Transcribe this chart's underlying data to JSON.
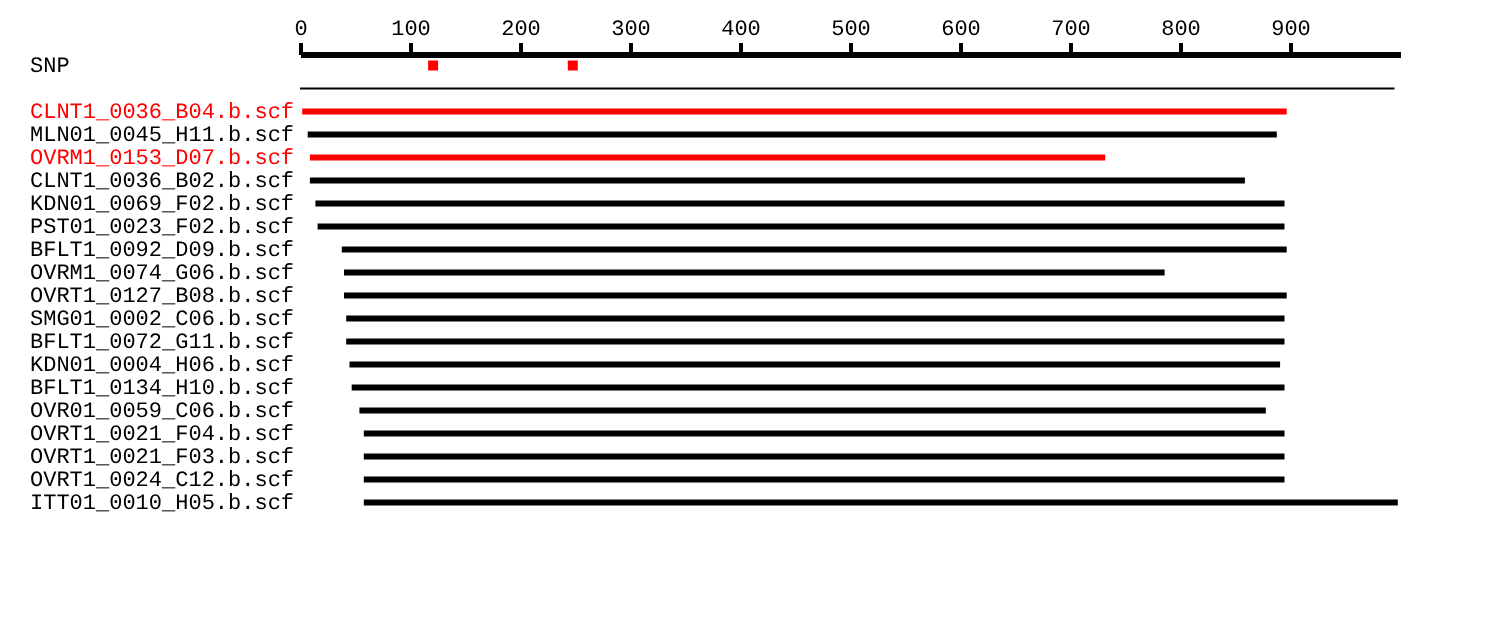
{
  "chart_data": {
    "type": "bar",
    "orientation": "horizontal",
    "xlim": [
      0,
      1000
    ],
    "xticks": [
      0,
      100,
      200,
      300,
      400,
      500,
      600,
      700,
      800,
      900
    ],
    "grid": false,
    "categories": [
      "SNP",
      null,
      "CLNT1_0036_B04.b.scf",
      "MLN01_0045_H11.b.scf",
      "OVRM1_0153_D07.b.scf",
      "CLNT1_0036_B02.b.scf",
      "KDN01_0069_F02.b.scf",
      "PST01_0023_F02.b.scf",
      "BFLT1_0092_D09.b.scf",
      "OVRM1_0074_G06.b.scf",
      "OVRT1_0127_B08.b.scf",
      "SMG01_0002_C06.b.scf",
      "BFLT1_0072_G11.b.scf",
      "KDN01_0004_H06.b.scf",
      "BFLT1_0134_H10.b.scf",
      "OVR01_0059_C06.b.scf",
      "OVRT1_0021_F04.b.scf",
      "OVRT1_0021_F03.b.scf",
      "OVRT1_0024_C12.b.scf",
      "ITT01_0010_H05.b.scf"
    ],
    "series": [
      {
        "base": [
          null,
          0,
          2,
          7,
          9,
          9,
          14,
          16,
          38,
          40,
          40,
          42,
          42,
          45,
          47,
          54,
          58,
          58,
          58,
          58
        ],
        "values": [
          null,
          995,
          895,
          881,
          723,
          850,
          881,
          879,
          859,
          746,
          857,
          853,
          853,
          846,
          848,
          824,
          837,
          837,
          837,
          940
        ],
        "colors": [
          "#000000",
          "#000000",
          "#ff0000",
          "#000000",
          "#ff0000",
          "#000000",
          "#000000",
          "#000000",
          "#000000",
          "#000000",
          "#000000",
          "#000000",
          "#000000",
          "#000000",
          "#000000",
          "#000000",
          "#000000",
          "#000000",
          "#000000",
          "#000000"
        ]
      },
      {
        "type": "scatter",
        "marker": "square",
        "color": "#ff0000",
        "values": [
          121,
          null,
          null,
          null,
          null,
          null,
          null,
          null,
          null,
          null,
          null,
          null,
          null,
          null,
          null,
          null,
          null,
          null,
          null,
          null
        ]
      },
      {
        "type": "scatter",
        "marker": "square",
        "color": "#ff0000",
        "values": [
          248,
          null,
          null,
          null,
          null,
          null,
          null,
          null,
          null,
          null,
          null,
          null,
          null,
          null,
          null,
          null,
          null,
          null,
          null,
          null
        ]
      }
    ]
  }
}
